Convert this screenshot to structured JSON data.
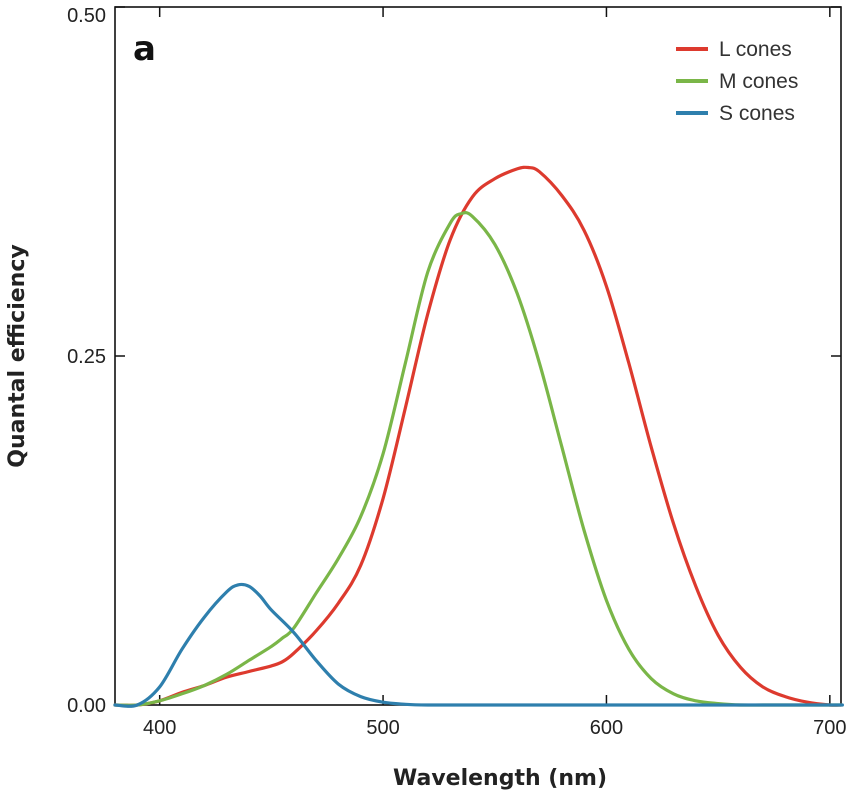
{
  "chart_data": {
    "type": "line",
    "panel_label": "a",
    "xlabel": "Wavelength (nm)",
    "ylabel": "Quantal efficiency",
    "xlim": [
      380,
      705
    ],
    "ylim": [
      0,
      0.5
    ],
    "x_ticks": [
      400,
      500,
      600,
      700
    ],
    "x_tick_labels": [
      "400",
      "500",
      "600",
      "700"
    ],
    "y_ticks": [
      0,
      0.25,
      0.5
    ],
    "y_tick_labels": [
      "0.00",
      "0.25",
      "0.50"
    ],
    "grid": false,
    "legend_position": "top-right",
    "series": [
      {
        "name": "L cones",
        "color": "#dd3a2e",
        "x": [
          380,
          390,
          400,
          410,
          420,
          430,
          440,
          450,
          455,
          460,
          470,
          480,
          490,
          500,
          510,
          520,
          530,
          540,
          550,
          560,
          565,
          570,
          580,
          590,
          600,
          610,
          620,
          630,
          640,
          650,
          660,
          670,
          680,
          690,
          700,
          705
        ],
        "y": [
          0.0,
          0.0,
          0.003,
          0.009,
          0.014,
          0.02,
          0.024,
          0.028,
          0.031,
          0.037,
          0.053,
          0.073,
          0.1,
          0.148,
          0.213,
          0.28,
          0.333,
          0.364,
          0.377,
          0.384,
          0.385,
          0.382,
          0.365,
          0.34,
          0.3,
          0.245,
          0.185,
          0.13,
          0.085,
          0.05,
          0.027,
          0.013,
          0.006,
          0.002,
          0.0,
          0.0
        ]
      },
      {
        "name": "M cones",
        "color": "#7ab648",
        "x": [
          380,
          390,
          400,
          410,
          420,
          430,
          440,
          450,
          455,
          460,
          470,
          480,
          490,
          500,
          510,
          520,
          530,
          535,
          540,
          550,
          560,
          570,
          580,
          590,
          600,
          610,
          620,
          630,
          640,
          650,
          660,
          670,
          680,
          690,
          700,
          705
        ],
        "y": [
          0.0,
          0.0,
          0.003,
          0.008,
          0.014,
          0.022,
          0.032,
          0.042,
          0.048,
          0.055,
          0.08,
          0.105,
          0.135,
          0.18,
          0.245,
          0.31,
          0.345,
          0.352,
          0.35,
          0.33,
          0.295,
          0.245,
          0.185,
          0.125,
          0.075,
          0.04,
          0.019,
          0.008,
          0.003,
          0.001,
          0.0,
          0.0,
          0.0,
          0.0,
          0.0,
          0.0
        ]
      },
      {
        "name": "S cones",
        "color": "#2e7fad",
        "x": [
          380,
          390,
          400,
          410,
          420,
          430,
          435,
          440,
          445,
          450,
          460,
          470,
          480,
          490,
          500,
          510,
          520,
          540,
          560,
          600,
          650,
          700,
          705
        ],
        "y": [
          0.0,
          0.0,
          0.013,
          0.04,
          0.063,
          0.081,
          0.086,
          0.085,
          0.078,
          0.068,
          0.052,
          0.032,
          0.015,
          0.006,
          0.002,
          0.0005,
          0.0,
          0.0,
          0.0,
          0.0,
          0.0,
          0.0,
          0.0
        ]
      }
    ]
  }
}
